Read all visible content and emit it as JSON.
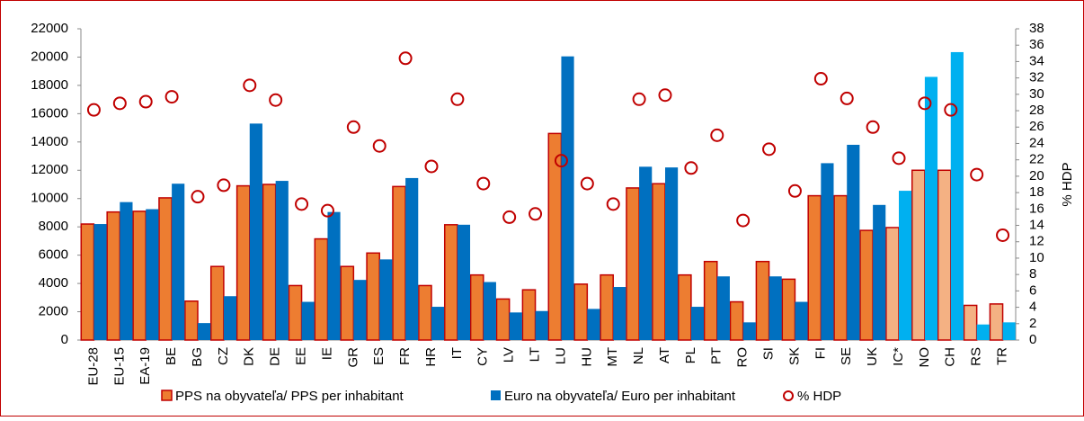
{
  "chart_data": {
    "type": "bar",
    "categories": [
      "EU-28",
      "EU-15",
      "EA-19",
      "BE",
      "BG",
      "CZ",
      "DK",
      "DE",
      "EE",
      "IE",
      "GR",
      "ES",
      "FR",
      "HR",
      "IT",
      "CY",
      "LV",
      "LT",
      "LU",
      "HU",
      "MT",
      "NL",
      "AT",
      "PL",
      "PT",
      "RO",
      "SI",
      "SK",
      "FI",
      "SE",
      "UK",
      "IC*",
      "NO",
      "CH",
      "RS",
      "TR"
    ],
    "series": [
      {
        "name": "PPS na obyvateľa/ PPS per inhabitant",
        "type": "bar",
        "stroke": "#c00000",
        "colors": [
          "#ed7d31",
          "#ed7d31",
          "#ed7d31",
          "#ed7d31",
          "#ed7d31",
          "#ed7d31",
          "#ed7d31",
          "#ed7d31",
          "#ed7d31",
          "#ed7d31",
          "#ed7d31",
          "#ed7d31",
          "#ed7d31",
          "#ed7d31",
          "#ed7d31",
          "#ed7d31",
          "#ed7d31",
          "#ed7d31",
          "#ed7d31",
          "#ed7d31",
          "#ed7d31",
          "#ed7d31",
          "#ed7d31",
          "#ed7d31",
          "#ed7d31",
          "#ed7d31",
          "#ed7d31",
          "#ed7d31",
          "#ed7d31",
          "#ed7d31",
          "#ed7d31",
          "#f4b183",
          "#f4b183",
          "#f4b183",
          "#f4b183",
          "#f4b183"
        ],
        "values": [
          8200,
          9050,
          9100,
          10050,
          2750,
          5200,
          10900,
          11000,
          3850,
          7150,
          5200,
          6150,
          10850,
          3850,
          8150,
          4600,
          2900,
          3550,
          14600,
          3950,
          4600,
          10750,
          11050,
          4600,
          5550,
          2700,
          5550,
          4300,
          10200,
          10200,
          7750,
          7950,
          12000,
          12000,
          2450,
          2550
        ]
      },
      {
        "name": "Euro na obyvateľa/ Euro per inhabitant",
        "type": "bar",
        "colors": [
          "#0070c0",
          "#0070c0",
          "#0070c0",
          "#0070c0",
          "#0070c0",
          "#0070c0",
          "#0070c0",
          "#0070c0",
          "#0070c0",
          "#0070c0",
          "#0070c0",
          "#0070c0",
          "#0070c0",
          "#0070c0",
          "#0070c0",
          "#0070c0",
          "#0070c0",
          "#0070c0",
          "#0070c0",
          "#0070c0",
          "#0070c0",
          "#0070c0",
          "#0070c0",
          "#0070c0",
          "#0070c0",
          "#0070c0",
          "#0070c0",
          "#0070c0",
          "#0070c0",
          "#0070c0",
          "#0070c0",
          "#00b0f0",
          "#00b0f0",
          "#00b0f0",
          "#00b0f0",
          "#00b0f0"
        ],
        "values": [
          8200,
          9750,
          9250,
          11050,
          1200,
          3100,
          15300,
          11250,
          2700,
          9050,
          4250,
          5700,
          11450,
          2350,
          8150,
          4100,
          1950,
          2050,
          20050,
          2200,
          3750,
          12250,
          12200,
          2350,
          4500,
          1250,
          4500,
          2700,
          12500,
          13800,
          9550,
          10550,
          18600,
          20350,
          1100,
          1250
        ]
      },
      {
        "name": "% HDP",
        "type": "scatter",
        "axis": "y2",
        "stroke": "#c00000",
        "values": [
          28.1,
          28.9,
          29.1,
          29.7,
          17.5,
          18.9,
          31.1,
          29.3,
          16.6,
          15.8,
          26.0,
          23.7,
          34.4,
          21.2,
          29.4,
          19.1,
          15.0,
          15.4,
          21.9,
          19.1,
          16.6,
          29.4,
          29.9,
          21.0,
          25.0,
          14.6,
          23.3,
          18.2,
          31.9,
          29.5,
          26.0,
          22.2,
          28.9,
          28.1,
          20.2,
          12.8
        ]
      }
    ],
    "ylim": [
      0,
      22000
    ],
    "yticks": [
      0,
      2000,
      4000,
      6000,
      8000,
      10000,
      12000,
      14000,
      16000,
      18000,
      20000,
      22000
    ],
    "y2label": "% HDP",
    "y2lim": [
      0,
      38
    ],
    "y2ticks": [
      0,
      2,
      4,
      6,
      8,
      10,
      12,
      14,
      16,
      18,
      20,
      22,
      24,
      26,
      28,
      30,
      32,
      34,
      36,
      38
    ],
    "legend": "bottom"
  }
}
